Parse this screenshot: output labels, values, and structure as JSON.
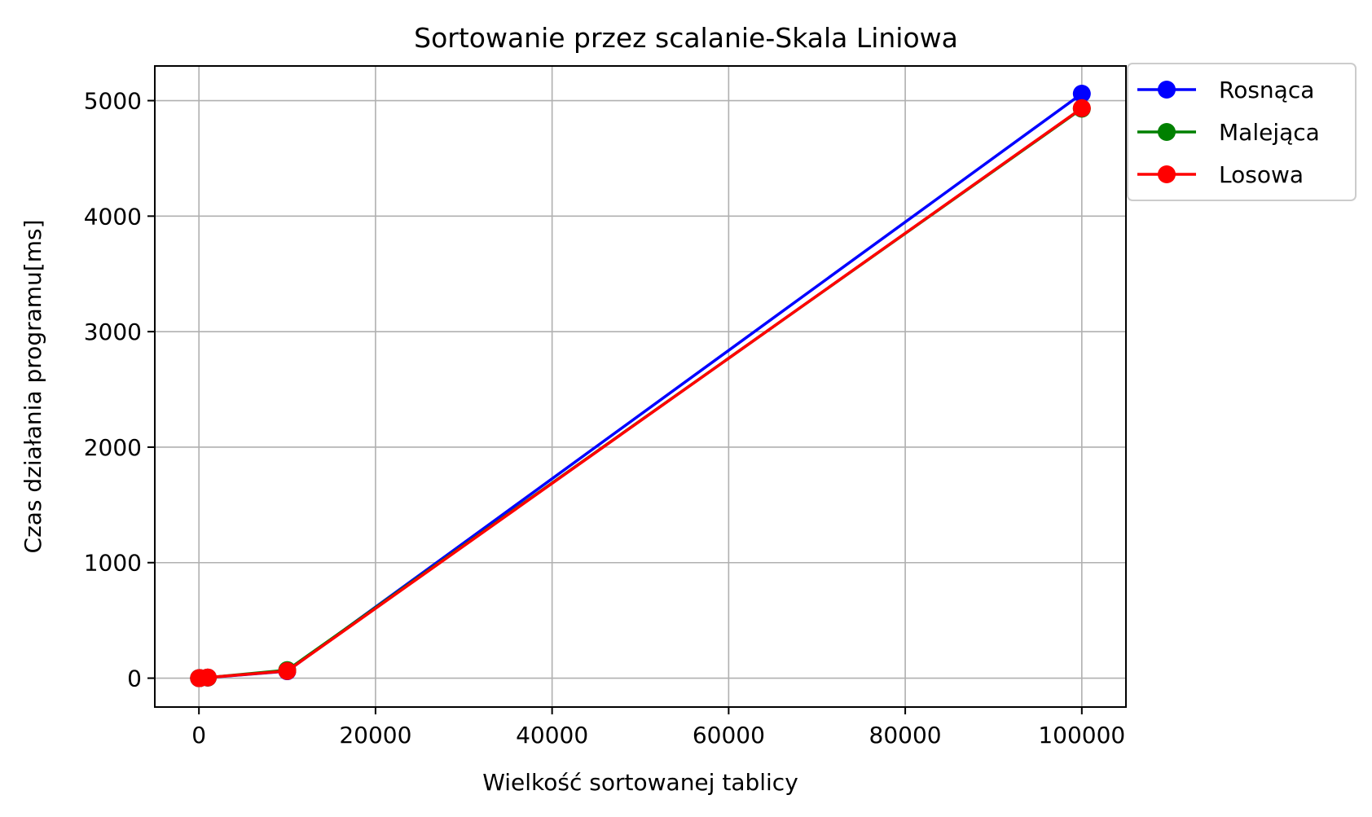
{
  "chart_data": {
    "type": "line",
    "title": "Sortowanie przez scalanie-Skala Liniowa",
    "xlabel": "Wielkość sortowanej tablicy",
    "ylabel": "Czas działania programu[ms]",
    "xlim": [
      -5000,
      105000
    ],
    "ylim": [
      -250,
      5300
    ],
    "xticks": [
      0,
      20000,
      40000,
      60000,
      80000,
      100000
    ],
    "xtick_labels": [
      "0",
      "20000",
      "40000",
      "60000",
      "80000",
      "100000"
    ],
    "yticks": [
      0,
      1000,
      2000,
      3000,
      4000,
      5000
    ],
    "ytick_labels": [
      "0",
      "1000",
      "2000",
      "3000",
      "4000",
      "5000"
    ],
    "grid": true,
    "legend_position": "outside-top-right",
    "x": [
      10,
      100,
      1000,
      10000,
      100000
    ],
    "series": [
      {
        "name": "Rosnąca",
        "color": "#0000ff",
        "marker": "circle",
        "values": [
          0,
          1,
          5,
          60,
          5060
        ]
      },
      {
        "name": "Malejąca",
        "color": "#008000",
        "marker": "circle",
        "values": [
          0,
          1,
          5,
          70,
          4930
        ]
      },
      {
        "name": "Losowa",
        "color": "#ff0000",
        "marker": "circle",
        "values": [
          0,
          1,
          6,
          62,
          4935
        ]
      }
    ]
  }
}
